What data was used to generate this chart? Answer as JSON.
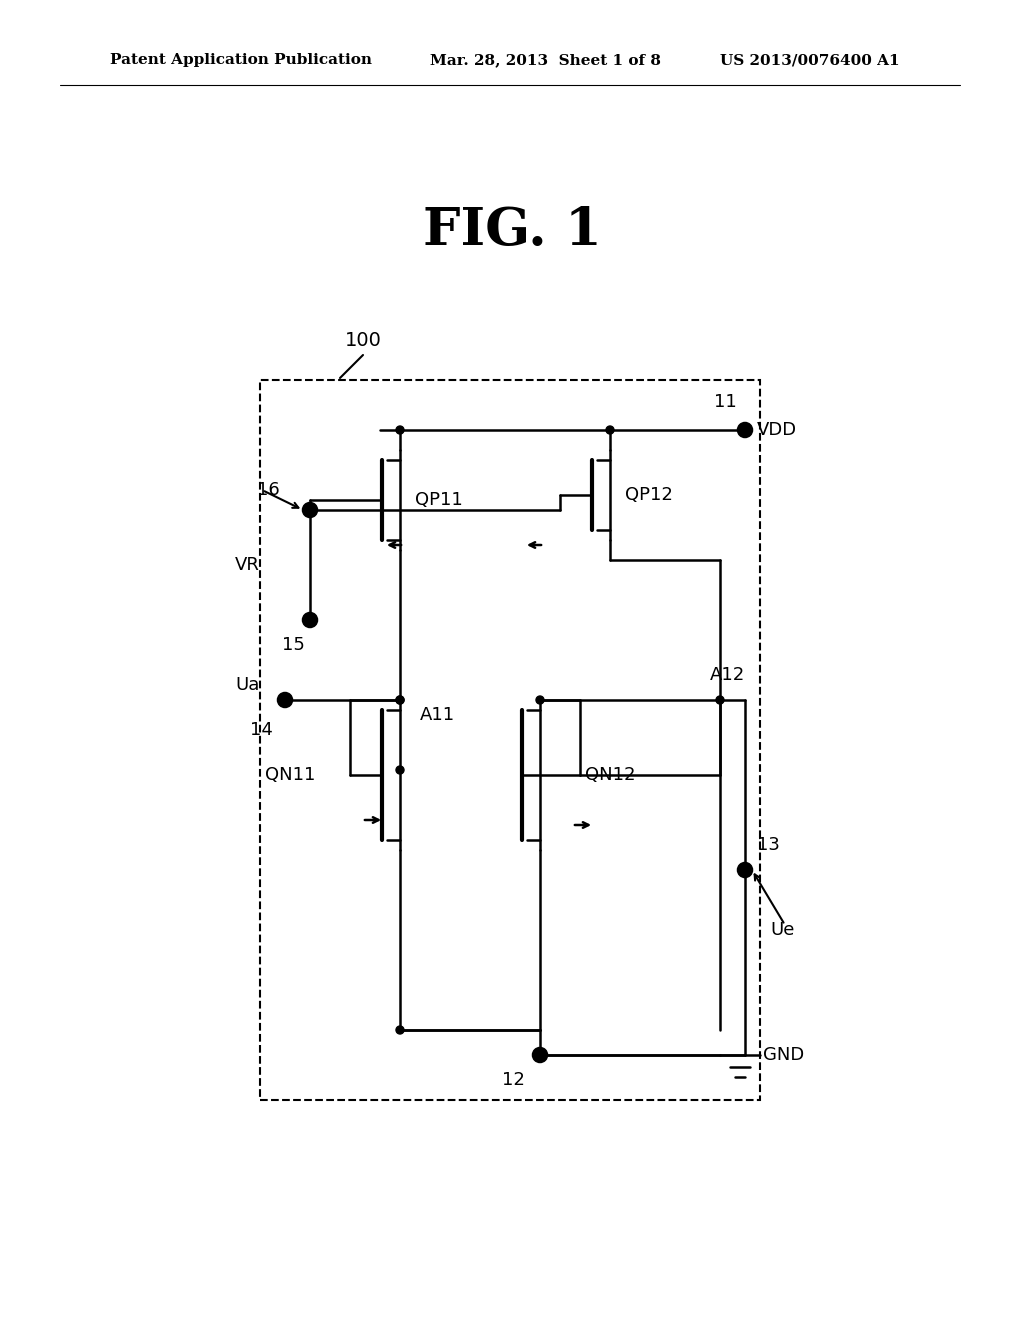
{
  "bg_color": "#ffffff",
  "text_color": "#000000",
  "line_color": "#000000",
  "header_left": "Patent Application Publication",
  "header_mid": "Mar. 28, 2013  Sheet 1 of 8",
  "header_right": "US 2013/0076400 A1",
  "fig_title": "FIG. 1",
  "label_100": "100",
  "label_11": "11",
  "label_VDD": "VDD",
  "label_16": "16",
  "label_VR": "VR",
  "label_15": "15",
  "label_QP11": "QP11",
  "label_QP12": "QP12",
  "label_Ua": "Ua",
  "label_14": "14",
  "label_A11": "A11",
  "label_A12": "A12",
  "label_QN11": "QN11",
  "label_QN12": "QN12",
  "label_13": "13",
  "label_Ue": "Ue",
  "label_12": "12",
  "label_GND": "GND"
}
